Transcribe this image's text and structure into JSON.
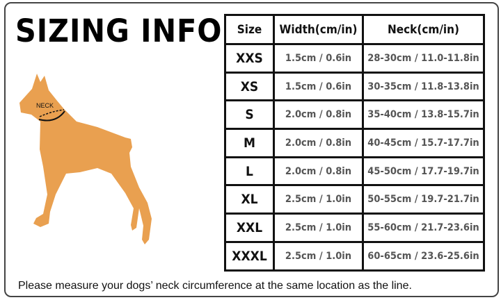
{
  "title": "SIZING INFO",
  "dog_label": "NECK",
  "colors": {
    "dog": "#E9A050",
    "border": "#111111"
  },
  "table": {
    "headers": [
      "Size",
      "Width(cm/in)",
      "Neck(cm/in)"
    ],
    "rows": [
      {
        "size": "XXS",
        "width": "1.5cm / 0.6in",
        "neck": "28-30cm / 11.0-11.8in"
      },
      {
        "size": "XS",
        "width": "1.5cm / 0.6in",
        "neck": "30-35cm / 11.8-13.8in"
      },
      {
        "size": "S",
        "width": "2.0cm / 0.8in",
        "neck": "35-40cm / 13.8-15.7in"
      },
      {
        "size": "M",
        "width": "2.0cm / 0.8in",
        "neck": "40-45cm / 15.7-17.7in"
      },
      {
        "size": "L",
        "width": "2.0cm / 0.8in",
        "neck": "45-50cm / 17.7-19.7in"
      },
      {
        "size": "XL",
        "width": "2.5cm / 1.0in",
        "neck": "50-55cm / 19.7-21.7in"
      },
      {
        "size": "XXL",
        "width": "2.5cm / 1.0in",
        "neck": "55-60cm / 21.7-23.6in"
      },
      {
        "size": "XXXL",
        "width": "2.5cm / 1.0in",
        "neck": "60-65cm / 23.6-25.6in"
      }
    ]
  },
  "footer": "Please measure your dogs’  neck circumference at the same location as the line."
}
